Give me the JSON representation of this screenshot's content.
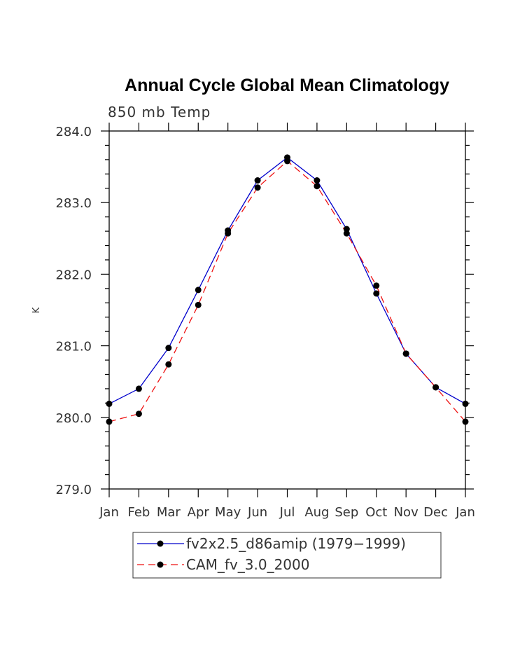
{
  "chart_data": {
    "type": "line",
    "title": "Annual Cycle Global Mean Climatology",
    "subtitle": "850 mb Temp",
    "xlabel": "",
    "ylabel": "K",
    "categories": [
      "Jan",
      "Feb",
      "Mar",
      "Apr",
      "May",
      "Jun",
      "Jul",
      "Aug",
      "Sep",
      "Oct",
      "Nov",
      "Dec",
      "Jan"
    ],
    "ylim": [
      279.0,
      284.0
    ],
    "yticks": [
      "279.0",
      "280.0",
      "281.0",
      "282.0",
      "283.0",
      "284.0"
    ],
    "grid": false,
    "legend_position": "bottom",
    "series": [
      {
        "name": "fv2x2.5_d86amip (1979−1999)",
        "color": "#0000cc",
        "dash": "solid",
        "marker": "circle",
        "values": [
          280.19,
          280.4,
          280.97,
          281.78,
          282.61,
          283.31,
          283.63,
          283.31,
          282.63,
          281.73,
          280.89,
          280.42,
          280.19
        ]
      },
      {
        "name": "CAM_fv_3.0_2000",
        "color": "#ee1111",
        "dash": "dashed",
        "marker": "circle",
        "values": [
          279.94,
          280.05,
          280.74,
          281.57,
          282.57,
          283.21,
          283.58,
          283.23,
          282.57,
          281.84,
          280.89,
          280.42,
          279.94
        ]
      }
    ]
  }
}
